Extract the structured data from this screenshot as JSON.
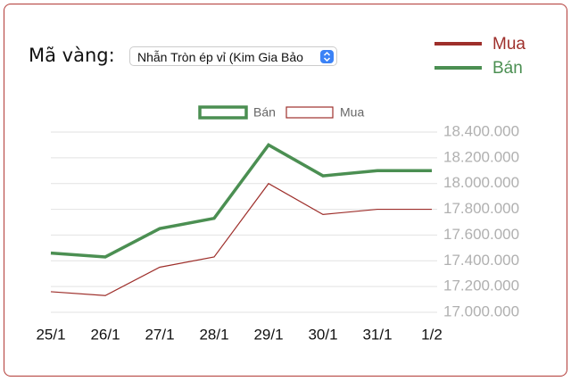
{
  "label": "Mã vàng:",
  "select": "Nhẫn Tròn ép vỉ (Kim Gia Bảo",
  "chart_data": {
    "type": "line",
    "categories": [
      "25/1",
      "26/1",
      "27/1",
      "28/1",
      "29/1",
      "30/1",
      "31/1",
      "1/2"
    ],
    "series": [
      {
        "name": "Bán",
        "color": "#4b8f52",
        "values": [
          17460000,
          17430000,
          17650000,
          17730000,
          18300000,
          18060000,
          18100000,
          18100000
        ]
      },
      {
        "name": "Mua",
        "color": "#9e2f2b",
        "values": [
          17160000,
          17130000,
          17350000,
          17430000,
          18000000,
          17760000,
          17800000,
          17800000
        ]
      }
    ],
    "ylim": [
      17000000,
      18400000
    ],
    "yticks": [
      {
        "value": 17000000,
        "label": "17.000.000"
      },
      {
        "value": 17200000,
        "label": "17.200.000"
      },
      {
        "value": 17400000,
        "label": "17.400.000"
      },
      {
        "value": 17600000,
        "label": "17.600.000"
      },
      {
        "value": 17800000,
        "label": "17.800.000"
      },
      {
        "value": 18000000,
        "label": "18.000.000"
      },
      {
        "value": 18200000,
        "label": "18.200.000"
      },
      {
        "value": 18400000,
        "label": "18.400.000"
      }
    ],
    "grid": true
  }
}
